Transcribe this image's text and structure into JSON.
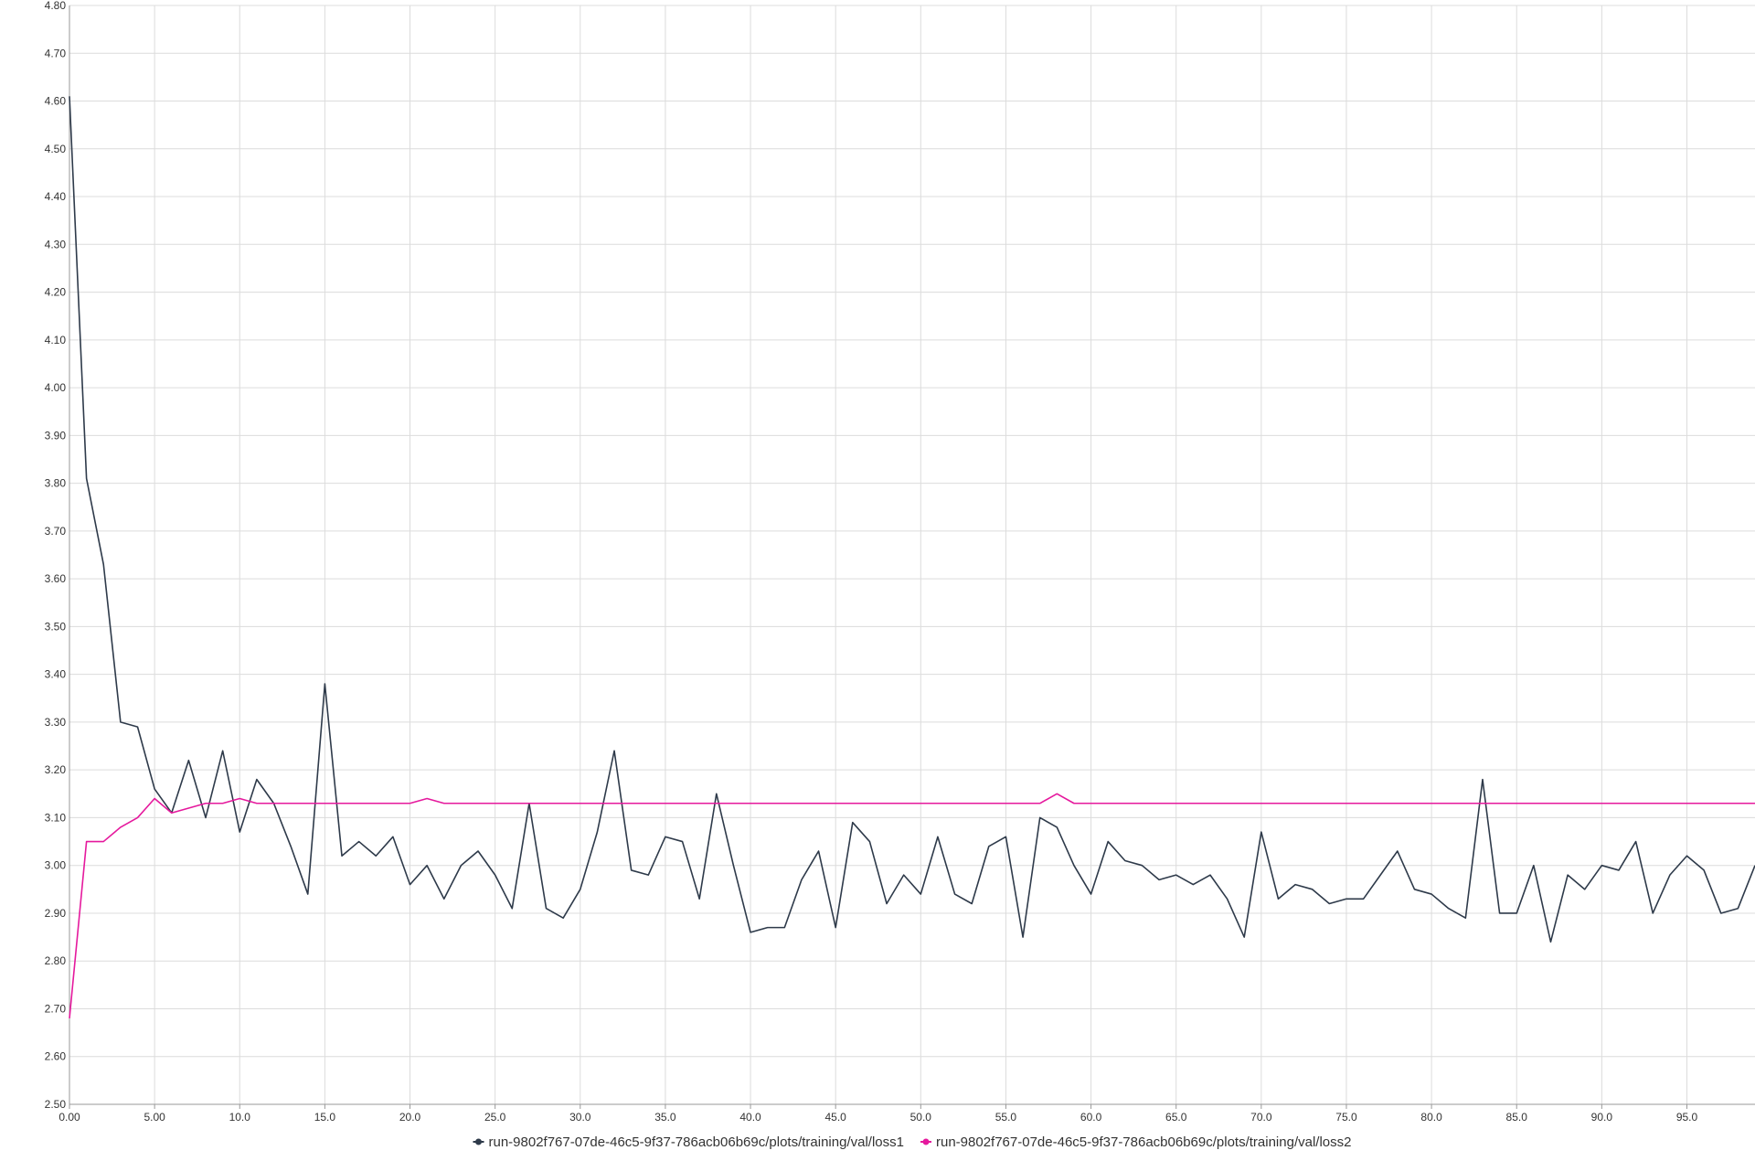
{
  "chart_data": {
    "type": "line",
    "title": "",
    "xlabel": "",
    "ylabel": "",
    "xlim": [
      0,
      99
    ],
    "ylim": [
      2.5,
      4.8
    ],
    "grid": true,
    "legend_position": "bottom-center",
    "x_ticks": [
      "0.00",
      "5.00",
      "10.0",
      "15.0",
      "20.0",
      "25.0",
      "30.0",
      "35.0",
      "40.0",
      "45.0",
      "50.0",
      "55.0",
      "60.0",
      "65.0",
      "70.0",
      "75.0",
      "80.0",
      "85.0",
      "90.0",
      "95.0"
    ],
    "y_ticks": [
      "2.50",
      "2.60",
      "2.70",
      "2.80",
      "2.90",
      "3.00",
      "3.10",
      "3.20",
      "3.30",
      "3.40",
      "3.50",
      "3.60",
      "3.70",
      "3.80",
      "3.90",
      "4.00",
      "4.10",
      "4.20",
      "4.30",
      "4.40",
      "4.50",
      "4.60",
      "4.70",
      "4.80"
    ],
    "series": [
      {
        "name": "run-9802f767-07de-46c5-9f37-786acb06b69c/plots/training/val/loss1",
        "color": "#2e3a4a",
        "values": [
          4.61,
          3.81,
          3.63,
          3.3,
          3.29,
          3.16,
          3.11,
          3.22,
          3.1,
          3.24,
          3.07,
          3.18,
          3.13,
          3.04,
          2.94,
          3.38,
          3.02,
          3.05,
          3.02,
          3.06,
          2.96,
          3.0,
          2.93,
          3.0,
          3.03,
          2.98,
          2.91,
          3.13,
          2.91,
          2.89,
          2.95,
          3.07,
          3.24,
          2.99,
          2.98,
          3.06,
          3.05,
          2.93,
          3.15,
          3.0,
          2.86,
          2.87,
          2.87,
          2.97,
          3.03,
          2.87,
          3.09,
          3.05,
          2.92,
          2.98,
          2.94,
          3.06,
          2.94,
          2.92,
          3.04,
          3.06,
          2.85,
          3.1,
          3.08,
          3.0,
          2.94,
          3.05,
          3.01,
          3.0,
          2.97,
          2.98,
          2.96,
          2.98,
          2.93,
          2.85,
          3.07,
          2.93,
          2.96,
          2.95,
          2.92,
          2.93,
          2.93,
          2.98,
          3.03,
          2.95,
          2.94,
          2.91,
          2.89,
          3.18,
          2.9,
          2.9,
          3.0,
          2.84,
          2.98,
          2.95,
          3.0,
          2.99,
          3.05,
          2.9,
          2.98,
          3.02,
          2.99,
          2.9,
          2.91,
          3.0
        ]
      },
      {
        "name": "run-9802f767-07de-46c5-9f37-786acb06b69c/plots/training/val/loss2",
        "color": "#e5199d",
        "values": [
          2.68,
          3.05,
          3.05,
          3.08,
          3.1,
          3.14,
          3.11,
          3.12,
          3.13,
          3.13,
          3.14,
          3.13,
          3.13,
          3.13,
          3.13,
          3.13,
          3.13,
          3.13,
          3.13,
          3.13,
          3.13,
          3.14,
          3.13,
          3.13,
          3.13,
          3.13,
          3.13,
          3.13,
          3.13,
          3.13,
          3.13,
          3.13,
          3.13,
          3.13,
          3.13,
          3.13,
          3.13,
          3.13,
          3.13,
          3.13,
          3.13,
          3.13,
          3.13,
          3.13,
          3.13,
          3.13,
          3.13,
          3.13,
          3.13,
          3.13,
          3.13,
          3.13,
          3.13,
          3.13,
          3.13,
          3.13,
          3.13,
          3.13,
          3.15,
          3.13,
          3.13,
          3.13,
          3.13,
          3.13,
          3.13,
          3.13,
          3.13,
          3.13,
          3.13,
          3.13,
          3.13,
          3.13,
          3.13,
          3.13,
          3.13,
          3.13,
          3.13,
          3.13,
          3.13,
          3.13,
          3.13,
          3.13,
          3.13,
          3.13,
          3.13,
          3.13,
          3.13,
          3.13,
          3.13,
          3.13,
          3.13,
          3.13,
          3.13,
          3.13,
          3.13,
          3.13,
          3.13,
          3.13,
          3.13,
          3.13
        ]
      }
    ]
  }
}
